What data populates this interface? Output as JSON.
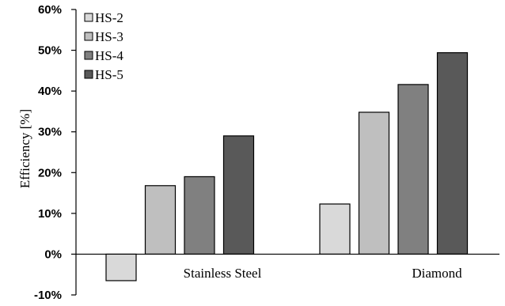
{
  "chart_data": {
    "type": "bar",
    "title": "",
    "xlabel": "",
    "ylabel": "Efficiency [%]",
    "categories": [
      "Stainless Steel",
      "Diamond"
    ],
    "series": [
      {
        "name": "HS-2",
        "values": [
          -6.5,
          12.3
        ],
        "color": "#d9d9d9"
      },
      {
        "name": "HS-3",
        "values": [
          16.8,
          34.8
        ],
        "color": "#bfbfbf"
      },
      {
        "name": "HS-4",
        "values": [
          19.0,
          41.6
        ],
        "color": "#808080"
      },
      {
        "name": "HS-5",
        "values": [
          29.0,
          49.4
        ],
        "color": "#595959"
      }
    ],
    "ylim": [
      -10,
      60
    ],
    "yticks": [
      -10,
      0,
      10,
      20,
      30,
      40,
      50,
      60
    ],
    "ytick_labels": [
      "-10%",
      "0%",
      "10%",
      "20%",
      "30%",
      "40%",
      "50%",
      "60%"
    ],
    "grid": false,
    "legend_position": "top-left"
  }
}
